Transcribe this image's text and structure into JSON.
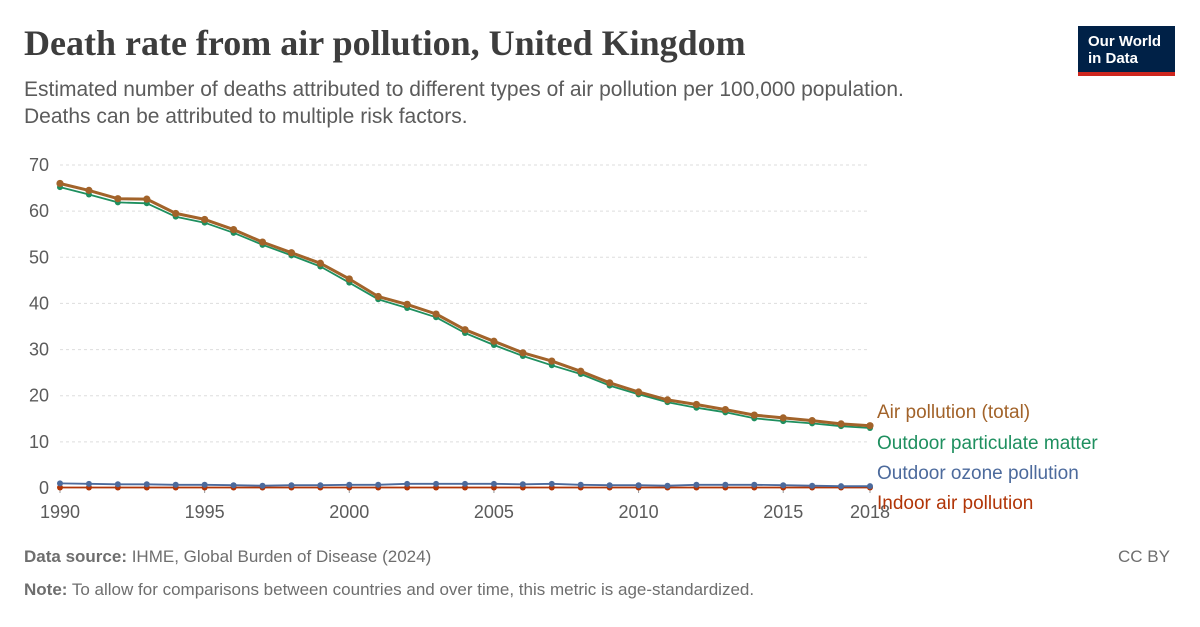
{
  "header": {
    "title": "Death rate from air pollution, United Kingdom",
    "subtitle_line1": "Estimated number of deaths attributed to different types of air pollution per 100,000 population.",
    "subtitle_line2": "Deaths can be attributed to multiple risk factors."
  },
  "logo": {
    "line1": "Our World",
    "line2": "in Data"
  },
  "footer": {
    "source_label": "Data source:",
    "source_text": " IHME, Global Burden of Disease (2024)",
    "note_label": "Note:",
    "note_text": " To allow for comparisons between countries and over time, this metric is age-standardized.",
    "license": "CC BY"
  },
  "chart_data": {
    "type": "line",
    "title": "Death rate from air pollution, United Kingdom",
    "xlabel": "",
    "ylabel": "",
    "xlim": [
      1990,
      2018
    ],
    "ylim": [
      0,
      70
    ],
    "yticks": [
      0,
      10,
      20,
      30,
      40,
      50,
      60,
      70
    ],
    "xticks": [
      1990,
      1995,
      2000,
      2005,
      2010,
      2015,
      2018
    ],
    "grid": "horizontal dashed",
    "legend": "right, labels at line ends",
    "x": [
      1990,
      1991,
      1992,
      1993,
      1994,
      1995,
      1996,
      1997,
      1998,
      1999,
      2000,
      2001,
      2002,
      2003,
      2004,
      2005,
      2006,
      2007,
      2008,
      2009,
      2010,
      2011,
      2012,
      2013,
      2014,
      2015,
      2016,
      2017,
      2018
    ],
    "series": [
      {
        "name": "Air pollution (total)",
        "color": "#a2632a",
        "values": [
          66.0,
          64.5,
          62.7,
          62.6,
          59.5,
          58.2,
          56.0,
          53.3,
          51.0,
          48.7,
          45.3,
          41.5,
          39.8,
          37.7,
          34.3,
          31.8,
          29.3,
          27.5,
          25.3,
          22.8,
          20.8,
          19.1,
          18.1,
          17.0,
          15.8,
          15.2,
          14.6,
          13.9,
          13.5
        ]
      },
      {
        "name": "Outdoor particulate matter",
        "color": "#1e8f5f",
        "values": [
          65.2,
          63.6,
          61.9,
          61.7,
          58.8,
          57.5,
          55.3,
          52.7,
          50.4,
          48.0,
          44.5,
          40.9,
          39.0,
          37.0,
          33.6,
          31.0,
          28.6,
          26.6,
          24.7,
          22.2,
          20.3,
          18.6,
          17.4,
          16.4,
          15.1,
          14.5,
          14.0,
          13.4,
          13.0
        ]
      },
      {
        "name": "Outdoor ozone pollution",
        "color": "#4c6a9c",
        "values": [
          1.0,
          0.9,
          0.8,
          0.8,
          0.7,
          0.7,
          0.6,
          0.5,
          0.6,
          0.6,
          0.7,
          0.7,
          0.9,
          0.9,
          0.9,
          0.9,
          0.8,
          0.9,
          0.7,
          0.6,
          0.6,
          0.5,
          0.7,
          0.7,
          0.7,
          0.6,
          0.5,
          0.4,
          0.4
        ]
      },
      {
        "name": "Indoor air pollution",
        "color": "#b13507",
        "values": [
          0.1,
          0.1,
          0.1,
          0.1,
          0.1,
          0.1,
          0.1,
          0.1,
          0.1,
          0.1,
          0.1,
          0.1,
          0.1,
          0.1,
          0.1,
          0.1,
          0.1,
          0.1,
          0.1,
          0.1,
          0.1,
          0.1,
          0.1,
          0.1,
          0.1,
          0.1,
          0.1,
          0.1,
          0.1
        ]
      }
    ]
  }
}
